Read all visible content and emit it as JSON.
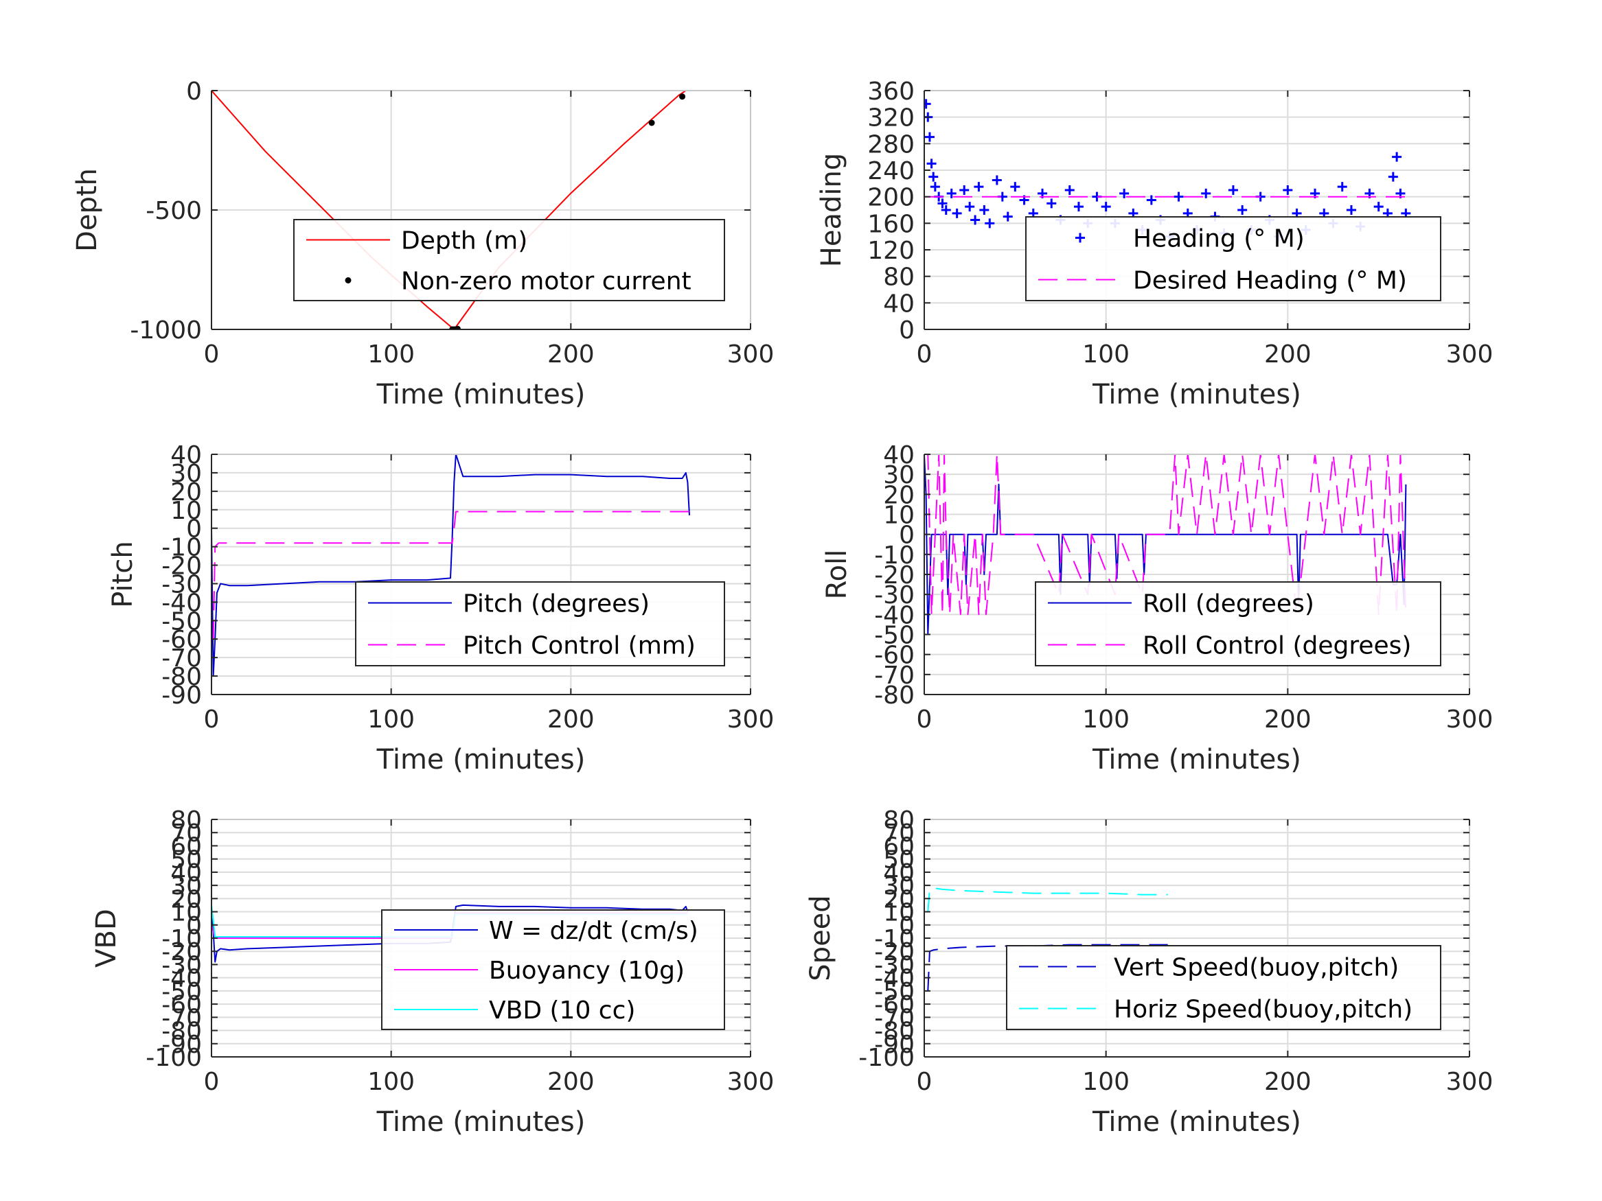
{
  "chart_data": [
    {
      "type": "line",
      "xlabel": "Time (minutes)",
      "ylabel": "Depth",
      "xlim": [
        0,
        300
      ],
      "ylim": [
        -1000,
        0
      ],
      "xticks": [
        0,
        100,
        200,
        300
      ],
      "yticks": [
        -1000,
        -500,
        0
      ],
      "ytick_labels": [
        "-1000",
        "-500",
        "0"
      ],
      "grid": true,
      "legend": "center-right",
      "series": [
        {
          "name": "Depth (m)",
          "color": "#ff0000",
          "style": "solid",
          "x": [
            0,
            30,
            60,
            90,
            120,
            135,
            160,
            200,
            230,
            260,
            266
          ],
          "y": [
            0,
            -255,
            -480,
            -705,
            -905,
            -1000,
            -740,
            -430,
            -220,
            -20,
            10
          ]
        },
        {
          "name": "Non-zero motor current",
          "color": "#000000",
          "style": "dot",
          "x": [
            134,
            135,
            136,
            137,
            245,
            262
          ],
          "y": [
            -1000,
            -1000,
            -1000,
            -998,
            -135,
            -25
          ]
        }
      ]
    },
    {
      "type": "scatter",
      "xlabel": "Time (minutes)",
      "ylabel": "Heading",
      "xlim": [
        0,
        300
      ],
      "ylim": [
        0,
        360
      ],
      "xticks": [
        0,
        100,
        200,
        300
      ],
      "yticks": [
        0,
        40,
        80,
        120,
        160,
        200,
        240,
        280,
        320,
        360
      ],
      "grid": true,
      "legend": "bottom-right",
      "series": [
        {
          "name": "Heading (° M)",
          "color": "#0000ff",
          "style": "plus",
          "x": [
            1,
            2,
            3,
            4,
            5,
            6,
            8,
            10,
            12,
            15,
            18,
            22,
            25,
            28,
            30,
            33,
            36,
            40,
            43,
            46,
            50,
            55,
            60,
            65,
            70,
            75,
            80,
            85,
            90,
            95,
            100,
            105,
            110,
            115,
            120,
            125,
            130,
            135,
            140,
            145,
            150,
            155,
            160,
            165,
            170,
            175,
            180,
            185,
            190,
            195,
            200,
            205,
            210,
            215,
            220,
            225,
            230,
            235,
            240,
            245,
            250,
            255,
            258,
            260,
            262,
            265
          ],
          "y": [
            340,
            320,
            290,
            250,
            230,
            215,
            200,
            190,
            180,
            205,
            175,
            210,
            185,
            165,
            215,
            180,
            160,
            225,
            200,
            170,
            215,
            195,
            175,
            205,
            190,
            165,
            210,
            185,
            160,
            200,
            185,
            160,
            205,
            175,
            150,
            195,
            165,
            140,
            200,
            175,
            150,
            205,
            170,
            145,
            210,
            180,
            150,
            200,
            165,
            140,
            210,
            175,
            150,
            205,
            175,
            160,
            215,
            180,
            155,
            205,
            185,
            175,
            230,
            260,
            205,
            175
          ]
        },
        {
          "name": "Desired Heading (° M)",
          "color": "#ff00ff",
          "style": "dash",
          "x": [
            0,
            265
          ],
          "y": [
            200,
            200
          ]
        }
      ]
    },
    {
      "type": "line",
      "xlabel": "Time (minutes)",
      "ylabel": "Pitch",
      "xlim": [
        0,
        300
      ],
      "ylim": [
        -90,
        40
      ],
      "xticks": [
        0,
        100,
        200,
        300
      ],
      "yticks": [
        -90,
        -80,
        -70,
        -60,
        -50,
        -40,
        -30,
        -20,
        -10,
        0,
        10,
        20,
        30,
        40
      ],
      "grid": true,
      "legend": "bottom-right",
      "series": [
        {
          "name": "Pitch (degrees)",
          "color": "#0000cc",
          "style": "solid",
          "x": [
            0,
            1,
            2,
            3,
            5,
            10,
            20,
            40,
            60,
            80,
            100,
            120,
            133,
            134,
            135,
            136,
            140,
            160,
            180,
            200,
            220,
            240,
            255,
            262,
            264,
            265,
            266
          ],
          "y": [
            0,
            -80,
            -60,
            -35,
            -30,
            -31,
            -31,
            -30,
            -29,
            -29,
            -28,
            -28,
            -27,
            -5,
            25,
            40,
            28,
            28,
            29,
            29,
            28,
            28,
            27,
            27,
            30,
            25,
            7
          ]
        },
        {
          "name": "Pitch Control (mm)",
          "color": "#ff00ff",
          "style": "dash",
          "x": [
            1,
            2,
            4,
            134,
            135,
            136,
            266
          ],
          "y": [
            -60,
            -10,
            -8,
            -8,
            0,
            9,
            9
          ]
        }
      ]
    },
    {
      "type": "line",
      "xlabel": "Time (minutes)",
      "ylabel": "Roll",
      "xlim": [
        0,
        300
      ],
      "ylim": [
        -80,
        40
      ],
      "xticks": [
        0,
        100,
        200,
        300
      ],
      "yticks": [
        -80,
        -70,
        -60,
        -50,
        -40,
        -30,
        -20,
        -10,
        0,
        10,
        20,
        30,
        40
      ],
      "grid": true,
      "legend": "bottom-right",
      "series": [
        {
          "name": "Roll (degrees)",
          "color": "#0000cc",
          "style": "solid",
          "x": [
            0,
            1,
            2,
            4,
            6,
            10,
            12,
            13,
            14,
            20,
            22,
            23,
            24,
            30,
            32,
            33,
            34,
            40,
            41,
            42,
            60,
            74,
            75,
            76,
            90,
            91,
            92,
            105,
            106,
            107,
            120,
            121,
            122,
            135,
            140,
            160,
            200,
            205,
            206,
            207,
            240,
            255,
            258,
            260,
            262,
            264,
            265
          ],
          "y": [
            40,
            20,
            -50,
            0,
            0,
            0,
            0,
            -30,
            0,
            0,
            0,
            -25,
            0,
            0,
            0,
            -20,
            0,
            0,
            25,
            0,
            0,
            0,
            -30,
            0,
            0,
            -25,
            0,
            0,
            -22,
            0,
            0,
            -20,
            0,
            0,
            0,
            0,
            0,
            0,
            -35,
            0,
            0,
            0,
            -25,
            -25,
            0,
            -35,
            25
          ]
        },
        {
          "name": "Roll Control (degrees)",
          "color": "#ff00ff",
          "style": "dash",
          "x": [
            0,
            2,
            4,
            8,
            10,
            11,
            12,
            14,
            16,
            20,
            22,
            24,
            28,
            30,
            32,
            34,
            38,
            40,
            42,
            60,
            74,
            76,
            90,
            92,
            105,
            107,
            120,
            122,
            135,
            138,
            140,
            145,
            150,
            155,
            160,
            165,
            170,
            175,
            180,
            185,
            190,
            195,
            200,
            205,
            210,
            215,
            220,
            225,
            230,
            235,
            240,
            245,
            250,
            255,
            260,
            262,
            265
          ],
          "y": [
            40,
            40,
            -40,
            40,
            -40,
            40,
            0,
            -40,
            0,
            -40,
            0,
            -40,
            0,
            -40,
            0,
            -40,
            0,
            40,
            0,
            0,
            -30,
            0,
            -30,
            0,
            -30,
            0,
            -30,
            0,
            0,
            40,
            0,
            40,
            0,
            40,
            0,
            40,
            0,
            40,
            0,
            40,
            0,
            40,
            0,
            -40,
            0,
            40,
            0,
            40,
            0,
            40,
            0,
            40,
            -40,
            40,
            -40,
            40,
            -40
          ]
        }
      ]
    },
    {
      "type": "line",
      "xlabel": "Time (minutes)",
      "ylabel": "VBD",
      "xlim": [
        0,
        300
      ],
      "ylim": [
        -100,
        80
      ],
      "xticks": [
        0,
        100,
        200,
        300
      ],
      "yticks": [
        -100,
        -90,
        -80,
        -70,
        -60,
        -50,
        -40,
        -30,
        -20,
        -10,
        0,
        10,
        20,
        30,
        40,
        50,
        60,
        70,
        80
      ],
      "grid": true,
      "legend": "bottom-right",
      "series": [
        {
          "name": "W = dz/dt (cm/s)",
          "color": "#0000cc",
          "style": "solid",
          "x": [
            0,
            1,
            2,
            3,
            5,
            10,
            20,
            40,
            60,
            80,
            100,
            120,
            133,
            134,
            135,
            136,
            140,
            160,
            180,
            200,
            220,
            240,
            255,
            262,
            264,
            265
          ],
          "y": [
            10,
            -5,
            -28,
            -20,
            -18,
            -19,
            -18,
            -17,
            -16,
            -15,
            -14,
            -14,
            -13,
            -5,
            5,
            14,
            15,
            14,
            14,
            13,
            13,
            12,
            12,
            11,
            14,
            10
          ]
        },
        {
          "name": "Buoyancy (10g)",
          "color": "#ff00ff",
          "style": "solid",
          "x": [
            0,
            2,
            5,
            134,
            136,
            265
          ],
          "y": [
            0,
            -10,
            -10,
            -10,
            9,
            9
          ]
        },
        {
          "name": "VBD (10 cc)",
          "color": "#00ffff",
          "style": "solid",
          "x": [
            0,
            2,
            5,
            134,
            136,
            265
          ],
          "y": [
            15,
            -9,
            -9,
            -9,
            8,
            8
          ]
        }
      ]
    },
    {
      "type": "line",
      "xlabel": "Time (minutes)",
      "ylabel": "Speed",
      "xlim": [
        0,
        300
      ],
      "ylim": [
        -100,
        80
      ],
      "xticks": [
        0,
        100,
        200,
        300
      ],
      "yticks": [
        -100,
        -90,
        -80,
        -70,
        -60,
        -50,
        -40,
        -30,
        -20,
        -10,
        0,
        10,
        20,
        30,
        40,
        50,
        60,
        70,
        80
      ],
      "grid": true,
      "legend": "bottom-right",
      "series": [
        {
          "name": "Vert Speed(buoy,pitch)",
          "color": "#0000cc",
          "style": "dash",
          "x": [
            2,
            3,
            5,
            10,
            20,
            40,
            60,
            80,
            100,
            120,
            134
          ],
          "y": [
            -50,
            -20,
            -19,
            -18,
            -17,
            -16,
            -16,
            -15,
            -15,
            -15,
            -15
          ]
        },
        {
          "name": "Horiz Speed(buoy,pitch)",
          "color": "#00ffff",
          "style": "dash",
          "x": [
            2,
            3,
            5,
            10,
            20,
            40,
            60,
            80,
            100,
            120,
            134
          ],
          "y": [
            10,
            27,
            28,
            27,
            26,
            25,
            24,
            24,
            24,
            23,
            23
          ]
        }
      ]
    }
  ]
}
